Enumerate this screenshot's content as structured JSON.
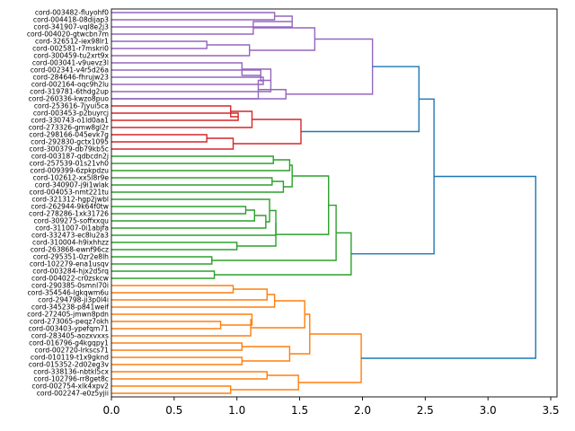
{
  "chart_data": {
    "type": "dendrogram",
    "orientation": "right",
    "title": "",
    "xlabel": "",
    "ylabel": "",
    "xlim": [
      0,
      3.55
    ],
    "xticks": [
      0.0,
      0.5,
      1.0,
      1.5,
      2.0,
      2.5,
      3.0,
      3.5
    ],
    "xtick_labels": [
      "0.0",
      "0.5",
      "1.0",
      "1.5",
      "2.0",
      "2.5",
      "3.0",
      "3.5"
    ],
    "leaves": [
      "cord-003482-fluyohf0",
      "cord-004418-08dijap3",
      "cord-341907-vql8e2j3",
      "cord-004020-gtwcbn7m",
      "cord-326512-iex98lr1",
      "cord-002581-r7mskri0",
      "cord-300459-tu2xrt9x",
      "cord-003041-v9uevz3l",
      "cord-002341-v4r5d26a",
      "cord-284646-fhrujw23",
      "cord-002164-oqc9h2lu",
      "cord-319781-6thdg2up",
      "cord-260336-kwzo8puo",
      "cord-253616-7jyui5ca",
      "cord-003453-p2buyrcj",
      "cord-330743-o1ld0aa1",
      "cord-273326-gmw8gl2r",
      "cord-298166-045evk7g",
      "cord-292830-gctx1095",
      "cord-300379-db79kb5c",
      "cord-003187-qdbcdn2j",
      "cord-257539-01s21vh0",
      "cord-009399-6zpkpdzu",
      "cord-102612-xx5l8r9e",
      "cord-340907-j9i1wlak",
      "cord-004053-nmt221tu",
      "cord-321312-hgp2jwbl",
      "cord-262944-9k64f0tw",
      "cord-278286-1xk31726",
      "cord-309275-soffxxqu",
      "cord-311007-0i1abjfa",
      "cord-332473-ec8lu2a3",
      "cord-310004-h9ixhhzz",
      "cord-263868-ewnf96cz",
      "cord-295351-0zr2e8lh",
      "cord-102279-ena1usqv",
      "cord-003284-hjx2d5rq",
      "cord-004022-cr0zskcw",
      "cord-290385-0smnl70i",
      "cord-354546-lgkqwm6u",
      "cord-294798-ji3p0l4i",
      "cord-345238-p841weif",
      "cord-272405-jmwn8pdn",
      "cord-273065-peqz7okh",
      "cord-003403-ypefqm71",
      "cord-283405-aozxvxxs",
      "cord-016796-g4kgqpy1",
      "cord-002720-lrkscs71",
      "cord-010119-t1x9gknd",
      "cord-015352-2d02eg3v",
      "cord-338136-nbtkl5cx",
      "cord-102796-rr8get8c",
      "cord-002754-xlk4xpv2",
      "cord-002247-e0z5yjii"
    ],
    "merges": [
      {
        "a": "L0",
        "b": "L1",
        "height": 1.3,
        "color": "#9467bd"
      },
      {
        "a": "M0",
        "b": "L2",
        "height": 1.44,
        "color": "#9467bd"
      },
      {
        "a": "L4",
        "b": "L5",
        "height": 0.76,
        "color": "#9467bd"
      },
      {
        "a": "M2",
        "b": "L6",
        "height": 1.1,
        "color": "#9467bd"
      },
      {
        "a": "M1",
        "b": "L3",
        "height": 1.13,
        "color": "#9467bd"
      },
      {
        "a": "M4",
        "b": "M3",
        "height": 1.62,
        "color": "#9467bd"
      },
      {
        "a": "L9",
        "b": "L10",
        "height": 1.21,
        "color": "#9467bd"
      },
      {
        "a": "L8",
        "b": "M6",
        "height": 1.19,
        "color": "#9467bd"
      },
      {
        "a": "L7",
        "b": "M7",
        "height": 1.04,
        "color": "#9467bd"
      },
      {
        "a": "M8",
        "b": "L11",
        "height": 1.27,
        "color": "#9467bd"
      },
      {
        "a": "M9",
        "b": "L12",
        "height": 1.17,
        "color": "#9467bd"
      },
      {
        "a": "M10",
        "b": "L12",
        "height": 1.39,
        "color": "#9467bd",
        "merge_with": "M10"
      },
      {
        "a": "M5",
        "b": "M10",
        "height": 2.08,
        "color": "#9467bd"
      },
      {
        "a": "L14",
        "b": "L15",
        "height": 1.01,
        "color": "#d62728"
      },
      {
        "a": "L13",
        "b": "M13",
        "height": 0.95,
        "color": "#d62728"
      },
      {
        "a": "M14",
        "b": "L16",
        "height": 1.12,
        "color": "#d62728"
      },
      {
        "a": "L17",
        "b": "L18",
        "height": 0.76,
        "color": "#d62728"
      },
      {
        "a": "M16",
        "b": "L19",
        "height": 0.97,
        "color": "#d62728"
      },
      {
        "a": "M15",
        "b": "M17",
        "height": 1.51,
        "color": "#d62728"
      },
      {
        "a": "L20",
        "b": "L21",
        "height": 1.29,
        "color": "#2ca02c"
      },
      {
        "a": "L22",
        "b": "M19",
        "height": 1.42,
        "color": "#2ca02c"
      },
      {
        "a": "L23",
        "b": "L24",
        "height": 1.28,
        "color": "#2ca02c"
      },
      {
        "a": "M21",
        "b": "L25",
        "height": 1.37,
        "color": "#2ca02c"
      },
      {
        "a": "M20",
        "b": "M22",
        "height": 1.44,
        "color": "#2ca02c"
      },
      {
        "a": "L27",
        "b": "L28",
        "height": 1.07,
        "color": "#2ca02c"
      },
      {
        "a": "M24",
        "b": "L29",
        "height": 1.14,
        "color": "#2ca02c"
      },
      {
        "a": "M25",
        "b": "L30",
        "height": 1.23,
        "color": "#2ca02c"
      },
      {
        "a": "L26",
        "b": "M26",
        "height": 1.26,
        "color": "#2ca02c"
      },
      {
        "a": "M27",
        "b": "L31",
        "height": 1.31,
        "color": "#2ca02c"
      },
      {
        "a": "L32",
        "b": "L33",
        "height": 1.0,
        "color": "#2ca02c"
      },
      {
        "a": "M28",
        "b": "M29",
        "height": 1.31,
        "color": "#2ca02c"
      },
      {
        "a": "M23",
        "b": "M30",
        "height": 1.73,
        "color": "#2ca02c"
      },
      {
        "a": "L34",
        "b": "L35",
        "height": 0.8,
        "color": "#2ca02c"
      },
      {
        "a": "M31",
        "b": "M32",
        "height": 1.79,
        "color": "#2ca02c"
      },
      {
        "a": "L36",
        "b": "L37",
        "height": 0.82,
        "color": "#2ca02c"
      },
      {
        "a": "M33",
        "b": "M34",
        "height": 1.91,
        "color": "#2ca02c"
      },
      {
        "a": "L38",
        "b": "L39",
        "height": 0.97,
        "color": "#ff7f0e"
      },
      {
        "a": "M36",
        "b": "L40",
        "height": 1.24,
        "color": "#ff7f0e"
      },
      {
        "a": "M37",
        "b": "L41",
        "height": 1.3,
        "color": "#ff7f0e"
      },
      {
        "a": "L43",
        "b": "L44",
        "height": 0.87,
        "color": "#ff7f0e"
      },
      {
        "a": "L42",
        "b": "M39",
        "height": 1.12,
        "color": "#ff7f0e"
      },
      {
        "a": "M40",
        "b": "L45",
        "height": 1.11,
        "color": "#ff7f0e"
      },
      {
        "a": "M38",
        "b": "M41",
        "height": 1.54,
        "color": "#ff7f0e"
      },
      {
        "a": "L46",
        "b": "L47",
        "height": 1.04,
        "color": "#ff7f0e"
      },
      {
        "a": "L48",
        "b": "L49",
        "height": 1.04,
        "color": "#ff7f0e"
      },
      {
        "a": "M43",
        "b": "M44",
        "height": 1.42,
        "color": "#ff7f0e"
      },
      {
        "a": "M42",
        "b": "M45",
        "height": 1.58,
        "color": "#ff7f0e"
      },
      {
        "a": "L50",
        "b": "L51",
        "height": 1.24,
        "color": "#ff7f0e"
      },
      {
        "a": "L52",
        "b": "L53",
        "height": 0.95,
        "color": "#ff7f0e"
      },
      {
        "a": "M47",
        "b": "M48",
        "height": 1.49,
        "color": "#ff7f0e"
      },
      {
        "a": "M46",
        "b": "M49",
        "height": 1.99,
        "color": "#ff7f0e"
      },
      {
        "a": "M12",
        "b": "M18",
        "height": 2.45,
        "color": "#1f77b4"
      },
      {
        "a": "M51",
        "b": "M35",
        "height": 2.57,
        "color": "#1f77b4"
      },
      {
        "a": "M52",
        "b": "M50",
        "height": 3.38,
        "color": "#1f77b4"
      }
    ],
    "cluster_colors": [
      "#9467bd",
      "#d62728",
      "#2ca02c",
      "#ff7f0e"
    ],
    "above_threshold_color": "#1f77b4"
  }
}
